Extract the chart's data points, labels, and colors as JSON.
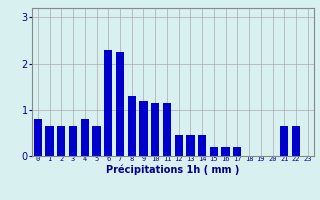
{
  "categories": [
    0,
    1,
    2,
    3,
    4,
    5,
    6,
    7,
    8,
    9,
    10,
    11,
    12,
    13,
    14,
    15,
    16,
    17,
    18,
    19,
    20,
    21,
    22,
    23
  ],
  "values": [
    0.8,
    0.65,
    0.65,
    0.65,
    0.8,
    0.65,
    2.3,
    2.25,
    1.3,
    1.2,
    1.15,
    1.15,
    0.45,
    0.45,
    0.45,
    0.2,
    0.2,
    0.2,
    0,
    0,
    0,
    0.65,
    0.65,
    0
  ],
  "bar_color": "#0000cc",
  "background_color": "#d8f0f0",
  "grid_color": "#aaaaaa",
  "xlabel": "Précipitations 1h ( mm )",
  "xlabel_color": "#00008b",
  "tick_color": "#00008b",
  "ylim": [
    0,
    3.2
  ],
  "yticks": [
    0,
    1,
    2,
    3
  ]
}
